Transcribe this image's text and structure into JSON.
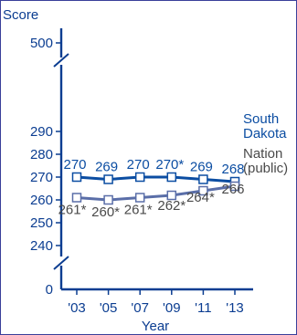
{
  "chart_data": {
    "type": "line",
    "ylabel": "Score",
    "xlabel": "Year",
    "categories": [
      "'03",
      "'05",
      "'07",
      "'09",
      "'11",
      "'13"
    ],
    "y_ticks": [
      0,
      240,
      250,
      260,
      270,
      280,
      290,
      500
    ],
    "y_axis_breaks": [
      "0-240",
      "290-500"
    ],
    "series": [
      {
        "name": "South Dakota",
        "name_lines": [
          "South",
          "Dakota"
        ],
        "color": "#0b4da2",
        "values": [
          270,
          269,
          270,
          270,
          269,
          268
        ],
        "data_labels": [
          "270",
          "269",
          "270",
          "270*",
          "269",
          "268"
        ]
      },
      {
        "name": "Nation (public)",
        "name_lines": [
          "Nation",
          "(public)"
        ],
        "color": "#5a6ea8",
        "label_color": "#4a4a4a",
        "values": [
          261,
          260,
          261,
          262,
          264,
          266
        ],
        "data_labels": [
          "261*",
          "260*",
          "261*",
          "262*",
          "264*",
          "266"
        ]
      }
    ]
  }
}
